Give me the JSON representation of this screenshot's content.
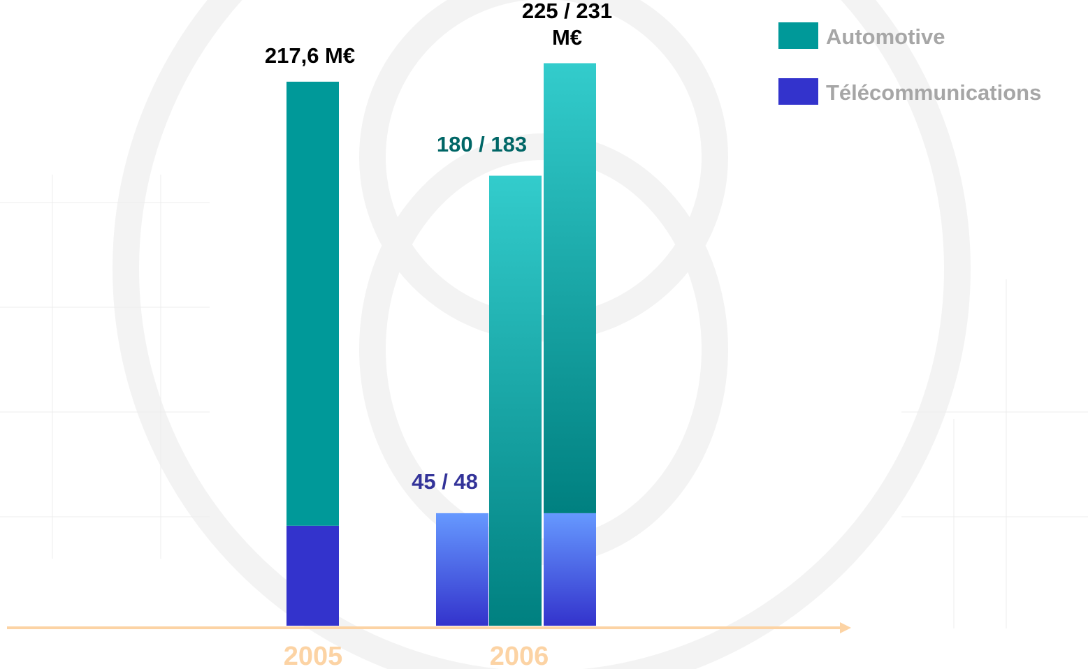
{
  "chart_data": {
    "type": "bar",
    "series": [
      {
        "name": "Automotive",
        "color": "#009999",
        "gradient": [
          "#33cccc",
          "#008080"
        ]
      },
      {
        "name": "Télécommunications",
        "color": "#3333cc",
        "gradient": [
          "#6699ff",
          "#3333cc"
        ]
      }
    ],
    "groups": [
      {
        "category": "2005",
        "bars": [
          {
            "style": "solid",
            "segments": [
              {
                "series": 1,
                "value": 40
              },
              {
                "series": 0,
                "value": 177.6
              }
            ],
            "total": 217.6,
            "total_label": "217,6 M€"
          }
        ]
      },
      {
        "category": "2006",
        "bars": [
          {
            "style": "gradient",
            "segments": [
              {
                "series": 1,
                "value": 45,
                "value_label": "45 / 48"
              }
            ]
          },
          {
            "style": "gradient",
            "segments": [
              {
                "series": 0,
                "value": 180,
                "value_label": "180 / 183"
              }
            ]
          },
          {
            "style": "gradient",
            "segments": [
              {
                "series": 1,
                "value": 45
              },
              {
                "series": 0,
                "value": 180
              }
            ],
            "total": 225,
            "total_label": "225 / 231 M€"
          }
        ]
      }
    ],
    "legend": "top-right"
  }
}
